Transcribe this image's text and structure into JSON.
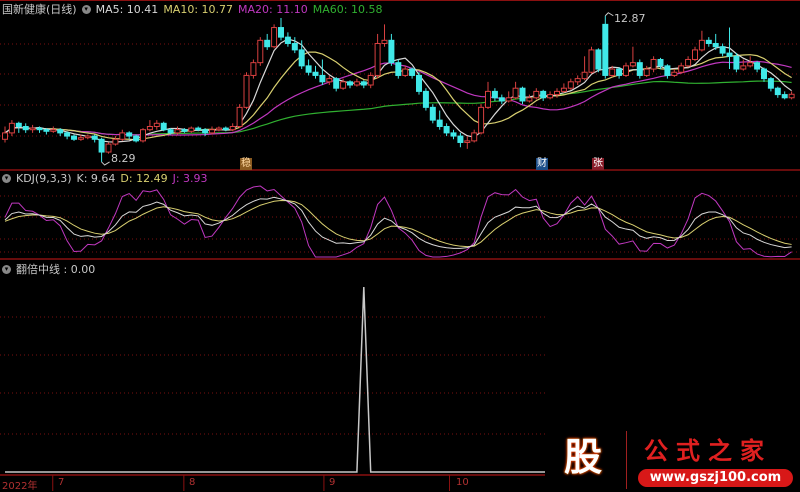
{
  "header": {
    "title": "国新健康(日线)",
    "ma5": "MA5: 10.41",
    "ma10": "MA10: 10.77",
    "ma20": "MA20: 11.10",
    "ma60": "MA60: 10.58"
  },
  "kdj_header": {
    "title": "KDJ(9,3,3)",
    "k": "K: 9.64",
    "d": "D: 12.49",
    "j": "J: 3.93"
  },
  "signal_header": {
    "title": "翻倍中线 : 0.00"
  },
  "markers": {
    "wen": "稳",
    "cai": "财",
    "zhang": "张"
  },
  "price_labels": {
    "high": "12.87",
    "low": "8.29"
  },
  "axis_labels": [
    "2022年",
    "7",
    "8",
    "9",
    "10"
  ],
  "logo": {
    "char": "股",
    "name": "公式之家",
    "url": "www.gszj100.com"
  },
  "colors": {
    "up": "#d84040",
    "down": "#40e8e8",
    "ma5": "#d8d8d8",
    "ma10": "#d8cf70",
    "ma20": "#c038c0",
    "ma60": "#30b030",
    "k": "#d8d8d8",
    "d": "#d8cf70",
    "j": "#c038c0",
    "grid": "#7a1010"
  },
  "chart_data": {
    "type": "candlestick",
    "ohlc": [
      [
        9.0,
        9.4,
        8.9,
        9.2
      ],
      [
        9.2,
        9.6,
        9.1,
        9.5
      ],
      [
        9.5,
        9.55,
        9.2,
        9.4
      ],
      [
        9.4,
        9.5,
        9.2,
        9.3
      ],
      [
        9.3,
        9.45,
        9.2,
        9.35
      ],
      [
        9.35,
        9.4,
        9.2,
        9.3
      ],
      [
        9.3,
        9.35,
        9.15,
        9.25
      ],
      [
        9.25,
        9.4,
        9.2,
        9.3
      ],
      [
        9.3,
        9.35,
        9.1,
        9.2
      ],
      [
        9.2,
        9.25,
        9.0,
        9.1
      ],
      [
        9.1,
        9.15,
        8.95,
        9.0
      ],
      [
        9.0,
        9.15,
        8.95,
        9.05
      ],
      [
        9.05,
        9.15,
        9.0,
        9.1
      ],
      [
        9.1,
        9.15,
        8.9,
        9.0
      ],
      [
        9.0,
        9.05,
        8.29,
        8.6
      ],
      [
        8.6,
        8.9,
        8.55,
        8.85
      ],
      [
        8.85,
        9.1,
        8.8,
        9.0
      ],
      [
        9.0,
        9.3,
        8.95,
        9.2
      ],
      [
        9.2,
        9.25,
        9.0,
        9.1
      ],
      [
        9.1,
        9.15,
        8.9,
        8.95
      ],
      [
        8.95,
        9.35,
        8.9,
        9.3
      ],
      [
        9.3,
        9.6,
        9.25,
        9.4
      ],
      [
        9.4,
        9.6,
        9.3,
        9.5
      ],
      [
        9.5,
        9.55,
        9.25,
        9.3
      ],
      [
        9.3,
        9.35,
        9.15,
        9.2
      ],
      [
        9.2,
        9.4,
        9.15,
        9.3
      ],
      [
        9.3,
        9.35,
        9.2,
        9.25
      ],
      [
        9.25,
        9.4,
        9.2,
        9.35
      ],
      [
        9.35,
        9.4,
        9.25,
        9.3
      ],
      [
        9.3,
        9.35,
        9.1,
        9.2
      ],
      [
        9.2,
        9.4,
        9.15,
        9.3
      ],
      [
        9.3,
        9.4,
        9.25,
        9.35
      ],
      [
        9.35,
        9.4,
        9.25,
        9.3
      ],
      [
        9.3,
        9.5,
        9.25,
        9.4
      ],
      [
        9.4,
        10.1,
        9.35,
        10.0
      ],
      [
        10.0,
        11.1,
        9.95,
        11.0
      ],
      [
        11.0,
        11.5,
        10.9,
        11.4
      ],
      [
        11.4,
        12.2,
        11.3,
        12.1
      ],
      [
        12.1,
        12.3,
        11.8,
        11.9
      ],
      [
        11.9,
        12.6,
        11.85,
        12.5
      ],
      [
        12.5,
        12.8,
        12.1,
        12.2
      ],
      [
        12.2,
        12.35,
        11.9,
        12.0
      ],
      [
        12.0,
        12.2,
        11.7,
        11.8
      ],
      [
        11.8,
        12.1,
        11.2,
        11.3
      ],
      [
        11.3,
        11.5,
        11.0,
        11.1
      ],
      [
        11.1,
        11.3,
        10.9,
        11.0
      ],
      [
        11.0,
        11.5,
        10.7,
        10.8
      ],
      [
        10.8,
        11.0,
        10.7,
        10.9
      ],
      [
        10.9,
        10.95,
        10.5,
        10.6
      ],
      [
        10.6,
        10.9,
        10.55,
        10.8
      ],
      [
        10.8,
        10.85,
        10.6,
        10.7
      ],
      [
        10.7,
        10.9,
        10.65,
        10.8
      ],
      [
        10.8,
        10.85,
        10.6,
        10.7
      ],
      [
        10.7,
        11.1,
        10.6,
        11.0
      ],
      [
        11.0,
        12.3,
        10.9,
        12.0
      ],
      [
        12.0,
        12.6,
        11.9,
        12.1
      ],
      [
        12.1,
        12.3,
        11.3,
        11.4
      ],
      [
        11.4,
        11.5,
        10.9,
        11.0
      ],
      [
        11.0,
        11.3,
        10.95,
        11.2
      ],
      [
        11.2,
        11.25,
        10.9,
        11.0
      ],
      [
        11.0,
        11.1,
        10.4,
        10.5
      ],
      [
        10.5,
        10.6,
        9.9,
        10.0
      ],
      [
        10.0,
        10.1,
        9.5,
        9.6
      ],
      [
        9.6,
        9.9,
        9.3,
        9.4
      ],
      [
        9.4,
        9.5,
        9.1,
        9.2
      ],
      [
        9.2,
        9.3,
        9.0,
        9.1
      ],
      [
        9.1,
        9.2,
        8.75,
        8.9
      ],
      [
        8.9,
        9.1,
        8.7,
        8.95
      ],
      [
        8.95,
        9.3,
        8.9,
        9.2
      ],
      [
        9.2,
        10.1,
        9.15,
        10.0
      ],
      [
        10.0,
        10.8,
        9.95,
        10.5
      ],
      [
        10.5,
        10.6,
        10.2,
        10.3
      ],
      [
        10.3,
        10.4,
        10.1,
        10.2
      ],
      [
        10.2,
        10.5,
        10.15,
        10.3
      ],
      [
        10.3,
        10.8,
        10.25,
        10.6
      ],
      [
        10.6,
        10.65,
        10.1,
        10.2
      ],
      [
        10.2,
        10.4,
        10.15,
        10.3
      ],
      [
        10.3,
        10.6,
        10.25,
        10.5
      ],
      [
        10.5,
        10.55,
        10.2,
        10.3
      ],
      [
        10.3,
        10.5,
        10.25,
        10.4
      ],
      [
        10.4,
        10.6,
        10.3,
        10.5
      ],
      [
        10.5,
        10.75,
        10.45,
        10.6
      ],
      [
        10.6,
        10.9,
        10.55,
        10.8
      ],
      [
        10.8,
        11.0,
        10.7,
        10.9
      ],
      [
        10.9,
        11.6,
        10.85,
        11.1
      ],
      [
        11.1,
        11.9,
        11.05,
        11.8
      ],
      [
        11.8,
        11.85,
        11.1,
        11.2
      ],
      [
        12.6,
        12.87,
        10.9,
        11.0
      ],
      [
        11.0,
        11.3,
        10.95,
        11.2
      ],
      [
        11.2,
        11.25,
        10.9,
        11.0
      ],
      [
        11.0,
        11.4,
        10.95,
        11.3
      ],
      [
        11.3,
        11.9,
        11.25,
        11.4
      ],
      [
        11.4,
        11.5,
        10.9,
        11.0
      ],
      [
        11.0,
        11.3,
        10.95,
        11.2
      ],
      [
        11.2,
        11.6,
        11.1,
        11.5
      ],
      [
        11.5,
        11.55,
        11.2,
        11.3
      ],
      [
        11.3,
        11.35,
        10.9,
        11.0
      ],
      [
        11.0,
        11.2,
        10.95,
        11.1
      ],
      [
        11.1,
        11.4,
        11.05,
        11.3
      ],
      [
        11.3,
        11.6,
        11.25,
        11.5
      ],
      [
        11.5,
        11.9,
        11.45,
        11.8
      ],
      [
        11.8,
        12.4,
        11.75,
        12.1
      ],
      [
        12.1,
        12.2,
        11.9,
        12.0
      ],
      [
        12.0,
        12.3,
        11.8,
        11.9
      ],
      [
        11.9,
        12.0,
        11.6,
        11.7
      ],
      [
        11.7,
        12.5,
        11.2,
        11.6
      ],
      [
        11.6,
        11.7,
        11.1,
        11.2
      ],
      [
        11.2,
        11.5,
        11.15,
        11.3
      ],
      [
        11.3,
        11.6,
        11.25,
        11.4
      ],
      [
        11.4,
        11.45,
        11.1,
        11.2
      ],
      [
        11.2,
        11.25,
        10.8,
        10.9
      ],
      [
        10.9,
        10.95,
        10.5,
        10.6
      ],
      [
        10.6,
        10.65,
        10.3,
        10.4
      ],
      [
        10.4,
        10.5,
        10.25,
        10.3
      ],
      [
        10.3,
        10.5,
        10.25,
        10.41
      ]
    ],
    "ma_periods": [
      5,
      10,
      20,
      60
    ],
    "kdj_params": [
      9,
      3,
      3
    ],
    "signal": {
      "name": "翻倍中线",
      "default": 0,
      "nonzero": {
        "52": 1
      }
    },
    "month_ticks": {
      "7": 7.5,
      "8": 26.5,
      "9": 46.8,
      "10": 65
    },
    "price_range": [
      8.1,
      13.05
    ],
    "grid": true
  }
}
